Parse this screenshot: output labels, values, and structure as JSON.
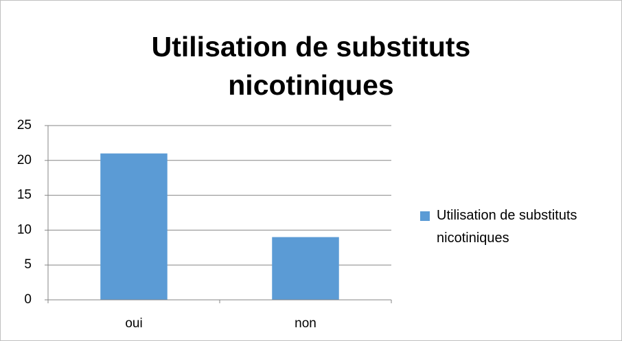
{
  "chart_data": {
    "type": "bar",
    "title": "Utilisation de substituts nicotiniques",
    "categories": [
      "oui",
      "non"
    ],
    "series": [
      {
        "name": "Utilisation de substituts nicotiniques",
        "color": "#5b9bd5",
        "values": [
          21,
          9
        ]
      }
    ],
    "ylim": [
      0,
      25
    ],
    "yticks": [
      0,
      5,
      10,
      15,
      20,
      25
    ],
    "grid": true,
    "legend": "right"
  }
}
